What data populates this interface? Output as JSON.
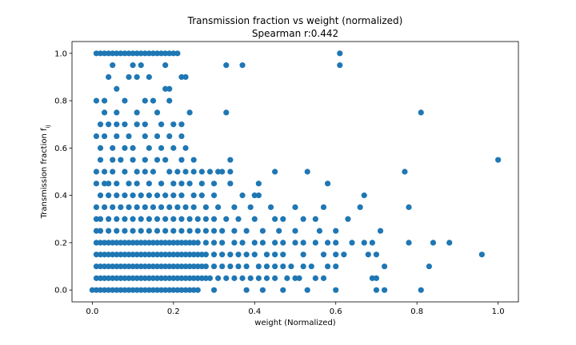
{
  "chart_data": {
    "type": "scatter",
    "title": "Transmission fraction vs weight (normalized)",
    "subtitle": "Spearman r:0.442",
    "xlabel": "weight (Normalized)",
    "ylabel": "Transmission fraction f",
    "ylabel_subscript": "ij",
    "xlim": [
      -0.05,
      1.05
    ],
    "ylim": [
      -0.05,
      1.05
    ],
    "xticks": [
      0.0,
      0.2,
      0.4,
      0.6,
      0.8,
      1.0
    ],
    "xtick_labels": [
      "0.0",
      "0.2",
      "0.4",
      "0.6",
      "0.8",
      "1.0"
    ],
    "yticks": [
      0.0,
      0.2,
      0.4,
      0.6,
      0.8,
      1.0
    ],
    "ytick_labels": [
      "0.0",
      "0.2",
      "0.4",
      "0.6",
      "0.8",
      "1.0"
    ],
    "grid": false,
    "marker_color": "#1f77b4",
    "series": [
      {
        "values": [
          {
            "y": 1.0,
            "x": [
              0.01,
              0.02,
              0.03,
              0.04,
              0.05,
              0.06,
              0.07,
              0.08,
              0.09,
              0.1,
              0.11,
              0.12,
              0.13,
              0.14,
              0.15,
              0.16,
              0.17,
              0.18,
              0.19,
              0.2,
              0.21,
              0.61
            ]
          },
          {
            "y": 0.95,
            "x": [
              0.05,
              0.1,
              0.12,
              0.18,
              0.33,
              0.37,
              0.61
            ]
          },
          {
            "y": 0.9,
            "x": [
              0.04,
              0.09,
              0.11,
              0.14,
              0.22,
              0.23
            ]
          },
          {
            "y": 0.85,
            "x": [
              0.06,
              0.18,
              0.19
            ]
          },
          {
            "y": 0.8,
            "x": [
              0.01,
              0.03,
              0.08,
              0.13,
              0.15,
              0.19
            ]
          },
          {
            "y": 0.75,
            "x": [
              0.03,
              0.06,
              0.11,
              0.16,
              0.24,
              0.33,
              0.81
            ]
          },
          {
            "y": 0.7,
            "x": [
              0.02,
              0.04,
              0.06,
              0.08,
              0.11,
              0.13,
              0.17,
              0.2,
              0.22
            ]
          },
          {
            "y": 0.65,
            "x": [
              0.01,
              0.03,
              0.06,
              0.09,
              0.13,
              0.16,
              0.19,
              0.22
            ]
          },
          {
            "y": 0.6,
            "x": [
              0.02,
              0.05,
              0.08,
              0.1,
              0.14,
              0.17,
              0.2,
              0.23
            ]
          },
          {
            "y": 0.55,
            "x": [
              0.02,
              0.05,
              0.07,
              0.1,
              0.13,
              0.16,
              0.18,
              0.22,
              0.25,
              0.34,
              1.0
            ]
          },
          {
            "y": 0.5,
            "x": [
              0.01,
              0.03,
              0.05,
              0.08,
              0.11,
              0.13,
              0.15,
              0.19,
              0.21,
              0.23,
              0.25,
              0.27,
              0.29,
              0.31,
              0.32,
              0.34,
              0.45,
              0.53,
              0.77
            ]
          },
          {
            "y": 0.45,
            "x": [
              0.01,
              0.03,
              0.04,
              0.06,
              0.09,
              0.11,
              0.14,
              0.17,
              0.2,
              0.22,
              0.24,
              0.27,
              0.3,
              0.34,
              0.41,
              0.58
            ]
          },
          {
            "y": 0.4,
            "x": [
              0.02,
              0.04,
              0.06,
              0.08,
              0.1,
              0.12,
              0.14,
              0.16,
              0.18,
              0.2,
              0.22,
              0.25,
              0.27,
              0.3,
              0.37,
              0.4,
              0.41,
              0.67
            ]
          },
          {
            "y": 0.35,
            "x": [
              0.01,
              0.03,
              0.05,
              0.07,
              0.09,
              0.11,
              0.13,
              0.15,
              0.17,
              0.19,
              0.21,
              0.23,
              0.25,
              0.28,
              0.31,
              0.35,
              0.39,
              0.44,
              0.5,
              0.57,
              0.66,
              0.78
            ]
          },
          {
            "y": 0.3,
            "x": [
              0.01,
              0.02,
              0.04,
              0.06,
              0.08,
              0.1,
              0.12,
              0.14,
              0.16,
              0.18,
              0.2,
              0.22,
              0.24,
              0.26,
              0.28,
              0.3,
              0.33,
              0.36,
              0.4,
              0.45,
              0.47,
              0.52,
              0.55,
              0.63
            ]
          },
          {
            "y": 0.25,
            "x": [
              0.01,
              0.02,
              0.04,
              0.06,
              0.08,
              0.1,
              0.12,
              0.14,
              0.16,
              0.18,
              0.2,
              0.22,
              0.24,
              0.26,
              0.28,
              0.3,
              0.32,
              0.35,
              0.38,
              0.42,
              0.46,
              0.5,
              0.56,
              0.6,
              0.71
            ]
          },
          {
            "y": 0.2,
            "x": [
              0.01,
              0.02,
              0.03,
              0.04,
              0.05,
              0.06,
              0.07,
              0.08,
              0.09,
              0.1,
              0.11,
              0.12,
              0.13,
              0.14,
              0.15,
              0.16,
              0.17,
              0.18,
              0.19,
              0.2,
              0.21,
              0.22,
              0.23,
              0.24,
              0.25,
              0.26,
              0.28,
              0.3,
              0.32,
              0.35,
              0.37,
              0.4,
              0.42,
              0.45,
              0.47,
              0.5,
              0.52,
              0.55,
              0.58,
              0.6,
              0.64,
              0.67,
              0.69,
              0.78,
              0.84,
              0.88
            ]
          },
          {
            "y": 0.15,
            "x": [
              0.01,
              0.02,
              0.03,
              0.04,
              0.05,
              0.06,
              0.07,
              0.08,
              0.09,
              0.1,
              0.11,
              0.12,
              0.13,
              0.14,
              0.15,
              0.16,
              0.17,
              0.18,
              0.19,
              0.2,
              0.21,
              0.22,
              0.23,
              0.24,
              0.25,
              0.26,
              0.27,
              0.28,
              0.3,
              0.32,
              0.34,
              0.36,
              0.38,
              0.4,
              0.43,
              0.45,
              0.47,
              0.52,
              0.57,
              0.6,
              0.62,
              0.68,
              0.7,
              0.96
            ]
          },
          {
            "y": 0.1,
            "x": [
              0.01,
              0.02,
              0.03,
              0.04,
              0.05,
              0.06,
              0.07,
              0.08,
              0.09,
              0.1,
              0.11,
              0.12,
              0.13,
              0.14,
              0.15,
              0.16,
              0.17,
              0.18,
              0.19,
              0.2,
              0.21,
              0.22,
              0.23,
              0.24,
              0.25,
              0.26,
              0.27,
              0.28,
              0.3,
              0.32,
              0.34,
              0.36,
              0.38,
              0.41,
              0.43,
              0.45,
              0.47,
              0.49,
              0.52,
              0.54,
              0.58,
              0.6,
              0.72,
              0.83
            ]
          },
          {
            "y": 0.05,
            "x": [
              0.01,
              0.02,
              0.03,
              0.04,
              0.05,
              0.06,
              0.07,
              0.08,
              0.09,
              0.1,
              0.11,
              0.12,
              0.13,
              0.14,
              0.15,
              0.16,
              0.17,
              0.18,
              0.19,
              0.2,
              0.21,
              0.22,
              0.23,
              0.24,
              0.25,
              0.26,
              0.27,
              0.28,
              0.29,
              0.31,
              0.33,
              0.35,
              0.37,
              0.39,
              0.41,
              0.43,
              0.45,
              0.48,
              0.5,
              0.51,
              0.55,
              0.57,
              0.69,
              0.7
            ]
          },
          {
            "y": 0.0,
            "x": [
              0.0,
              0.01,
              0.02,
              0.03,
              0.04,
              0.05,
              0.06,
              0.07,
              0.08,
              0.09,
              0.1,
              0.11,
              0.12,
              0.13,
              0.14,
              0.15,
              0.16,
              0.17,
              0.18,
              0.19,
              0.2,
              0.21,
              0.22,
              0.23,
              0.24,
              0.25,
              0.26,
              0.3,
              0.38,
              0.42,
              0.47,
              0.53,
              0.6,
              0.7,
              0.72,
              0.81
            ]
          }
        ]
      }
    ]
  }
}
